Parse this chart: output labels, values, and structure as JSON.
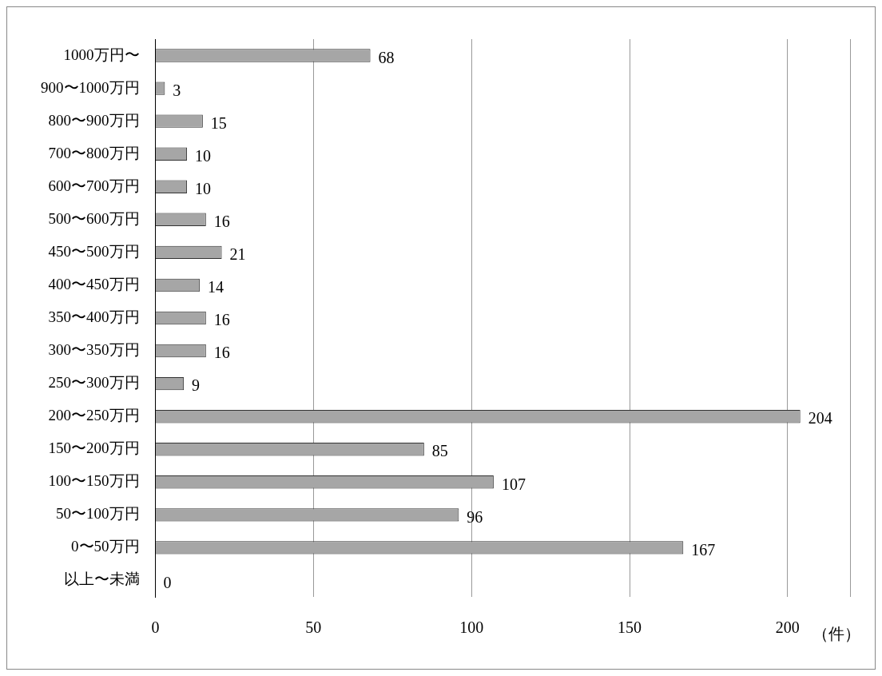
{
  "chart_data": {
    "type": "bar",
    "orientation": "horizontal",
    "categories": [
      "1000万円〜",
      "900〜1000万円",
      "800〜900万円",
      "700〜800万円",
      "600〜700万円",
      "500〜600万円",
      "450〜500万円",
      "400〜450万円",
      "350〜400万円",
      "300〜350万円",
      "250〜300万円",
      "200〜250万円",
      "150〜200万円",
      "100〜150万円",
      "50〜100万円",
      "0〜50万円",
      "以上〜未満"
    ],
    "values": [
      68,
      3,
      15,
      10,
      10,
      16,
      21,
      14,
      16,
      16,
      9,
      204,
      85,
      107,
      96,
      167,
      0
    ],
    "color": "#a6a6a6",
    "xlim": [
      0,
      220
    ],
    "xticks": [
      0,
      50,
      100,
      150,
      200
    ],
    "xlabel": "（件）",
    "grid": "x",
    "data_labels": true,
    "legend": false
  }
}
